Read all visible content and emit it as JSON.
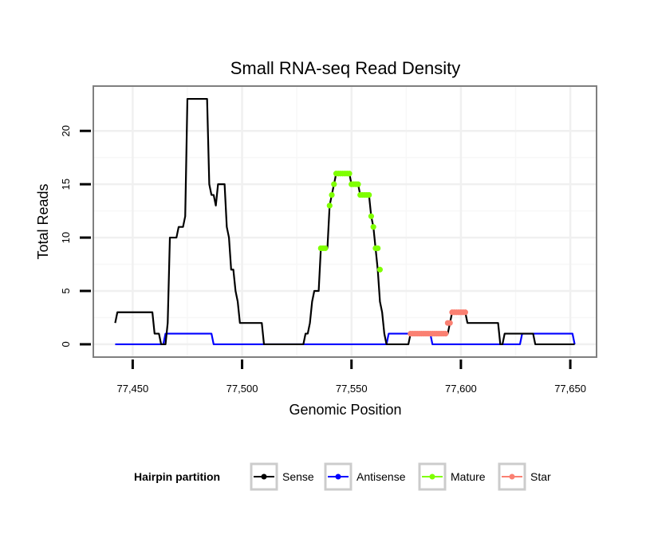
{
  "chart_data": {
    "type": "line",
    "title": "Small RNA-seq Read Density",
    "xlabel": "Genomic Position",
    "ylabel": "Total Reads",
    "xlim": [
      77432,
      77662
    ],
    "ylim": [
      -1.2,
      24.2
    ],
    "x_ticks": [
      77450,
      77500,
      77550,
      77600,
      77650
    ],
    "x_tick_labels": [
      "77,450",
      "77,500",
      "77,550",
      "77,600",
      "77,650"
    ],
    "y_ticks": [
      0,
      5,
      10,
      15,
      20
    ],
    "y_tick_labels": [
      "0",
      "5",
      "10",
      "15",
      "20"
    ],
    "grid": true,
    "legend": {
      "title": "Hairpin partition",
      "position": "bottom",
      "entries": [
        {
          "label": "Sense",
          "color": "#000000"
        },
        {
          "label": "Antisense",
          "color": "#0000FF"
        },
        {
          "label": "Mature",
          "color": "#7FFF00"
        },
        {
          "label": "Star",
          "color": "#FA8072"
        }
      ]
    },
    "series": [
      {
        "name": "Sense",
        "color": "#000000",
        "style": "line",
        "points": [
          [
            77442,
            2
          ],
          [
            77443,
            3
          ],
          [
            77459,
            3
          ],
          [
            77460,
            1
          ],
          [
            77462,
            1
          ],
          [
            77463,
            0
          ],
          [
            77465,
            0
          ],
          [
            77466,
            2
          ],
          [
            77467,
            10
          ],
          [
            77470,
            10
          ],
          [
            77471,
            11
          ],
          [
            77473,
            11
          ],
          [
            77474,
            12
          ],
          [
            77475,
            23
          ],
          [
            77484,
            23
          ],
          [
            77485,
            15
          ],
          [
            77486,
            14
          ],
          [
            77487,
            14
          ],
          [
            77488,
            13
          ],
          [
            77489,
            15
          ],
          [
            77492,
            15
          ],
          [
            77493,
            11
          ],
          [
            77494,
            10
          ],
          [
            77495,
            7
          ],
          [
            77496,
            7
          ],
          [
            77497,
            5
          ],
          [
            77498,
            4
          ],
          [
            77499,
            2
          ],
          [
            77509,
            2
          ],
          [
            77510,
            0
          ],
          [
            77528,
            0
          ],
          [
            77529,
            1
          ],
          [
            77530,
            1
          ],
          [
            77531,
            2
          ],
          [
            77532,
            4
          ],
          [
            77533,
            5
          ],
          [
            77535,
            5
          ],
          [
            77536,
            9
          ],
          [
            77539,
            9
          ],
          [
            77540,
            13
          ],
          [
            77541,
            14
          ],
          [
            77542,
            15
          ],
          [
            77543,
            16
          ],
          [
            77549,
            16
          ],
          [
            77550,
            15
          ],
          [
            77553,
            15
          ],
          [
            77554,
            14
          ],
          [
            77558,
            14
          ],
          [
            77559,
            12
          ],
          [
            77560,
            11
          ],
          [
            77561,
            9
          ],
          [
            77562,
            7
          ],
          [
            77563,
            4
          ],
          [
            77564,
            3
          ],
          [
            77565,
            1
          ],
          [
            77566,
            0
          ],
          [
            77576,
            0
          ],
          [
            77577,
            1
          ],
          [
            77594,
            1
          ],
          [
            77595,
            2
          ],
          [
            77596,
            3
          ],
          [
            77602,
            3
          ],
          [
            77603,
            2
          ],
          [
            77617,
            2
          ],
          [
            77618,
            0
          ],
          [
            77619,
            0
          ],
          [
            77620,
            1
          ],
          [
            77633,
            1
          ],
          [
            77634,
            0
          ],
          [
            77652,
            0
          ]
        ]
      },
      {
        "name": "Antisense",
        "color": "#0000FF",
        "style": "line",
        "points": [
          [
            77442,
            0
          ],
          [
            77464,
            0
          ],
          [
            77465,
            1
          ],
          [
            77486,
            1
          ],
          [
            77487,
            0
          ],
          [
            77566,
            0
          ],
          [
            77567,
            1
          ],
          [
            77586,
            1
          ],
          [
            77587,
            0
          ],
          [
            77627,
            0
          ],
          [
            77628,
            1
          ],
          [
            77651,
            1
          ],
          [
            77652,
            0
          ]
        ]
      },
      {
        "name": "Mature",
        "color": "#7FFF00",
        "style": "points",
        "points": [
          [
            77536,
            9
          ],
          [
            77537,
            9
          ],
          [
            77538,
            9
          ],
          [
            77540,
            13
          ],
          [
            77541,
            14
          ],
          [
            77542,
            15
          ],
          [
            77543,
            16
          ],
          [
            77544,
            16
          ],
          [
            77545,
            16
          ],
          [
            77546,
            16
          ],
          [
            77547,
            16
          ],
          [
            77548,
            16
          ],
          [
            77549,
            16
          ],
          [
            77550,
            15
          ],
          [
            77551,
            15
          ],
          [
            77552,
            15
          ],
          [
            77553,
            15
          ],
          [
            77554,
            14
          ],
          [
            77555,
            14
          ],
          [
            77556,
            14
          ],
          [
            77557,
            14
          ],
          [
            77558,
            14
          ],
          [
            77559,
            12
          ],
          [
            77560,
            11
          ],
          [
            77561,
            9
          ],
          [
            77562,
            9
          ],
          [
            77563,
            7
          ]
        ]
      },
      {
        "name": "Star",
        "color": "#FA8072",
        "style": "points",
        "points": [
          [
            77577,
            1
          ],
          [
            77578,
            1
          ],
          [
            77579,
            1
          ],
          [
            77580,
            1
          ],
          [
            77581,
            1
          ],
          [
            77582,
            1
          ],
          [
            77583,
            1
          ],
          [
            77584,
            1
          ],
          [
            77585,
            1
          ],
          [
            77586,
            1
          ],
          [
            77587,
            1
          ],
          [
            77588,
            1
          ],
          [
            77589,
            1
          ],
          [
            77590,
            1
          ],
          [
            77591,
            1
          ],
          [
            77592,
            1
          ],
          [
            77593,
            1
          ],
          [
            77594,
            2
          ],
          [
            77595,
            2
          ],
          [
            77596,
            3
          ],
          [
            77597,
            3
          ],
          [
            77598,
            3
          ],
          [
            77599,
            3
          ],
          [
            77600,
            3
          ],
          [
            77601,
            3
          ],
          [
            77602,
            3
          ]
        ]
      }
    ]
  }
}
